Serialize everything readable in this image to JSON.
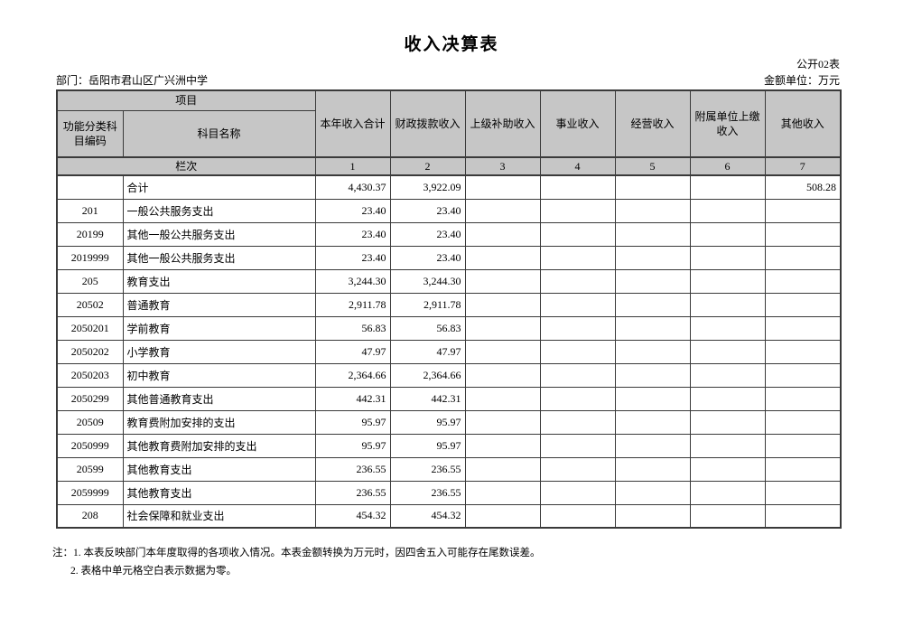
{
  "page": {
    "title": "收入决算表",
    "form_code": "公开02表",
    "department_line": "部门：岳阳市君山区广兴洲中学",
    "unit_line": "金额单位：万元"
  },
  "table": {
    "project_label": "项目",
    "code_label": "功能分类科目编码",
    "name_label": "科目名称",
    "lanci_label": "栏次",
    "value_columns": [
      "本年收入合计",
      "财政拨款收入",
      "上级补助收入",
      "事业收入",
      "经营收入",
      "附属单位上缴收入",
      "其他收入"
    ],
    "column_numbers": [
      "1",
      "2",
      "3",
      "4",
      "5",
      "6",
      "7"
    ],
    "rows": [
      {
        "code": "",
        "name": "合计",
        "values": [
          "4,430.37",
          "3,922.09",
          "",
          "",
          "",
          "",
          "508.28"
        ]
      },
      {
        "code": "201",
        "name": "一般公共服务支出",
        "values": [
          "23.40",
          "23.40",
          "",
          "",
          "",
          "",
          ""
        ]
      },
      {
        "code": "20199",
        "name": "其他一般公共服务支出",
        "values": [
          "23.40",
          "23.40",
          "",
          "",
          "",
          "",
          ""
        ]
      },
      {
        "code": "2019999",
        "name": "其他一般公共服务支出",
        "values": [
          "23.40",
          "23.40",
          "",
          "",
          "",
          "",
          ""
        ]
      },
      {
        "code": "205",
        "name": "教育支出",
        "values": [
          "3,244.30",
          "3,244.30",
          "",
          "",
          "",
          "",
          ""
        ]
      },
      {
        "code": "20502",
        "name": "普通教育",
        "values": [
          "2,911.78",
          "2,911.78",
          "",
          "",
          "",
          "",
          ""
        ]
      },
      {
        "code": "2050201",
        "name": "学前教育",
        "values": [
          "56.83",
          "56.83",
          "",
          "",
          "",
          "",
          ""
        ]
      },
      {
        "code": "2050202",
        "name": "小学教育",
        "values": [
          "47.97",
          "47.97",
          "",
          "",
          "",
          "",
          ""
        ]
      },
      {
        "code": "2050203",
        "name": "初中教育",
        "values": [
          "2,364.66",
          "2,364.66",
          "",
          "",
          "",
          "",
          ""
        ]
      },
      {
        "code": "2050299",
        "name": "其他普通教育支出",
        "values": [
          "442.31",
          "442.31",
          "",
          "",
          "",
          "",
          ""
        ]
      },
      {
        "code": "20509",
        "name": "教育费附加安排的支出",
        "values": [
          "95.97",
          "95.97",
          "",
          "",
          "",
          "",
          ""
        ]
      },
      {
        "code": "2050999",
        "name": "其他教育费附加安排的支出",
        "values": [
          "95.97",
          "95.97",
          "",
          "",
          "",
          "",
          ""
        ]
      },
      {
        "code": "20599",
        "name": "其他教育支出",
        "values": [
          "236.55",
          "236.55",
          "",
          "",
          "",
          "",
          ""
        ]
      },
      {
        "code": "2059999",
        "name": "其他教育支出",
        "values": [
          "236.55",
          "236.55",
          "",
          "",
          "",
          "",
          ""
        ]
      },
      {
        "code": "208",
        "name": "社会保障和就业支出",
        "values": [
          "454.32",
          "454.32",
          "",
          "",
          "",
          "",
          ""
        ]
      }
    ]
  },
  "notes": {
    "line1": "注：1. 本表反映部门本年度取得的各项收入情况。本表金额转换为万元时，因四舍五入可能存在尾数误差。",
    "line2": "2. 表格中单元格空白表示数据为零。"
  },
  "colors": {
    "header_bg": "#c6c6c6",
    "border": "#3a3a3a",
    "page_bg": "#ffffff"
  }
}
